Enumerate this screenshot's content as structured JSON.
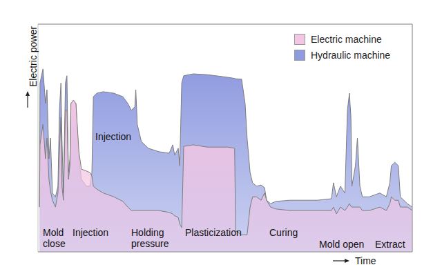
{
  "chart_data": {
    "type": "area",
    "x_label": "Time",
    "y_label": "Electric power",
    "annotations": [
      "Mold close",
      "Injection",
      "Holding pressure",
      "Plasticization",
      "Curing",
      "Mold open",
      "Extract",
      "Injection"
    ],
    "x": [
      0.3,
      0.4,
      1.0,
      1.5,
      1.8,
      2.2,
      2.5,
      2.9,
      3.5,
      4.0,
      4.3,
      4.6,
      4.8,
      5.1,
      5.5,
      5.8,
      6.1,
      6.4,
      6.6,
      7.1,
      7.6,
      8.2,
      8.7,
      9.7,
      10.4,
      10.8,
      11.1,
      11.8,
      13.1,
      15.2,
      17.0,
      18.0,
      18.7,
      19.4,
      19.6,
      19.9,
      20.7,
      22.1,
      24.2,
      26.3,
      27.0,
      27.4,
      28.1,
      28.4,
      28.8,
      29.2,
      31.1,
      33.9,
      38.0,
      39.4,
      39.6,
      40.8,
      41.5,
      41.9,
      42.5,
      43.0,
      43.8,
      44.7,
      45.4,
      45.8,
      46.6,
      47.7,
      50.5,
      53.3,
      56.0,
      58.8,
      59.2,
      59.8,
      60.6,
      61.5,
      62.0,
      62.4,
      62.7,
      62.9,
      63.6,
      64.0,
      64.5,
      65.0,
      66.4,
      68.5,
      69.8,
      70.5,
      70.8,
      71.5,
      72.2,
      72.6,
      74.0,
      75.0
    ],
    "series": [
      {
        "name": "Electric machine",
        "color": "#f3c6e4",
        "values": [
          11.8,
          28.2,
          33.6,
          24.5,
          30,
          19.1,
          16,
          13.6,
          11.8,
          15.5,
          26.4,
          35.5,
          17.3,
          13.6,
          37.3,
          37.3,
          19.1,
          22.7,
          39.1,
          40,
          39.1,
          26.4,
          21.8,
          21.3,
          20.9,
          20,
          17.3,
          16.5,
          15.5,
          14.5,
          13.3,
          11.8,
          10.9,
          10.9,
          10.9,
          10.9,
          10.9,
          10.9,
          10.9,
          10.4,
          10,
          9.5,
          9.1,
          7.3,
          6.4,
          27.8,
          28.2,
          27.6,
          27.6,
          27.3,
          5.5,
          4.5,
          4.5,
          4.5,
          11.8,
          14.5,
          14.5,
          13.6,
          15.5,
          13.6,
          11.8,
          11.3,
          10.9,
          10.9,
          10.9,
          10.9,
          11.8,
          10,
          11.8,
          10.9,
          11.8,
          12.7,
          12,
          11.8,
          11.8,
          11.8,
          11.8,
          10.9,
          10.9,
          11.8,
          10.9,
          12.7,
          14.5,
          13.6,
          13.6,
          11.8,
          11.8,
          10.9
        ]
      },
      {
        "name": "Hydraulic machine",
        "color": "#8f9be0",
        "values": [
          11.8,
          44.5,
          48.2,
          39.1,
          42.7,
          24.5,
          30,
          15.5,
          14.5,
          17.3,
          37.3,
          44.5,
          30,
          15.5,
          44.5,
          46.4,
          20.9,
          24.5,
          39.1,
          39.1,
          39.1,
          24.5,
          19.1,
          17.3,
          17.3,
          20.9,
          40.9,
          41.8,
          42.2,
          41.8,
          40.9,
          39.1,
          37.3,
          38.2,
          42.7,
          33.6,
          29.1,
          27.3,
          26.4,
          26,
          28.2,
          25.5,
          27.3,
          22.7,
          44.5,
          46.4,
          46.9,
          46.7,
          46,
          45.7,
          45.6,
          45.5,
          39.1,
          30,
          20.9,
          18.2,
          17.3,
          17.6,
          16.9,
          13.6,
          12.7,
          13.3,
          13.6,
          13.6,
          13.6,
          14,
          18.2,
          14.5,
          17.3,
          15.5,
          37.3,
          41.8,
          35.5,
          17.3,
          22.7,
          30,
          17.3,
          14.5,
          14.5,
          15.5,
          14.5,
          18.2,
          22.7,
          23.6,
          22.7,
          14.5,
          12.7,
          11.8
        ]
      }
    ],
    "xlim": [
      0,
      75
    ],
    "xticks": [
      0,
      10,
      20,
      30,
      40,
      50,
      60,
      70
    ],
    "ylim": [
      0,
      60
    ],
    "yticks": [
      0,
      10,
      20,
      30,
      40,
      50,
      60
    ],
    "grid": true,
    "legend": "upper right",
    "tick_labels": false
  }
}
